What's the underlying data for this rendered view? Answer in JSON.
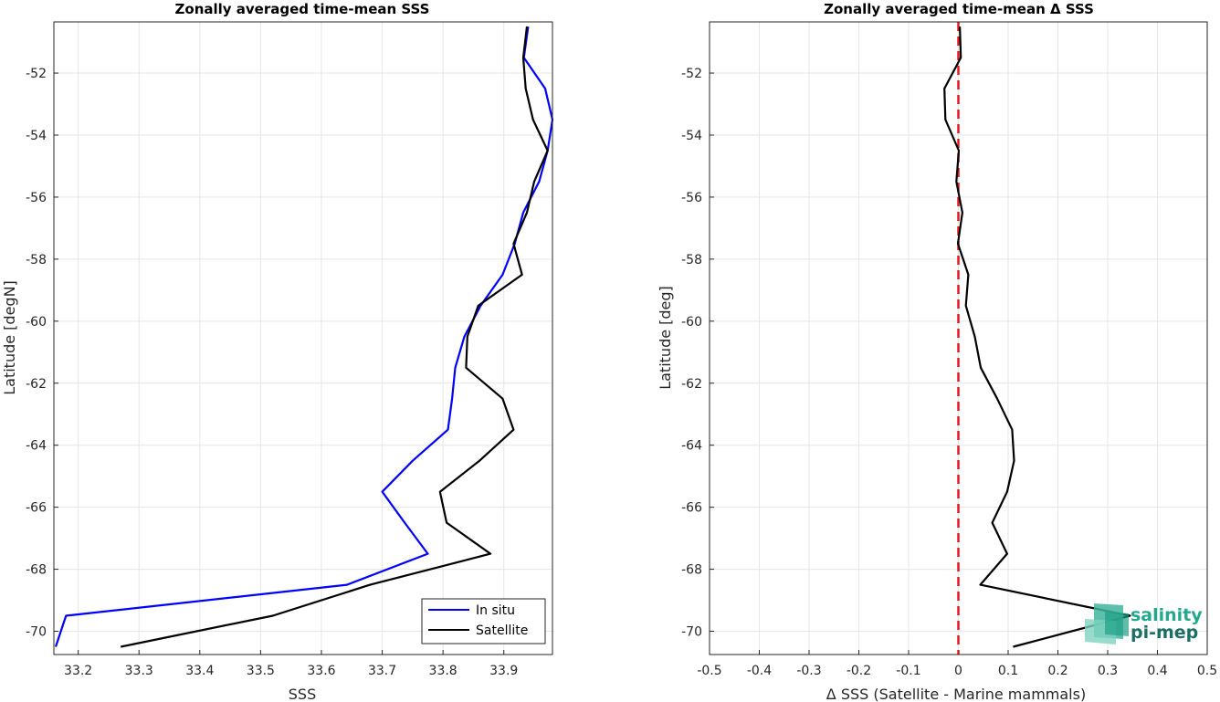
{
  "chart_data": [
    {
      "type": "line",
      "title": "Zonally averaged time-mean SSS",
      "xlabel": "SSS",
      "ylabel": "Latitude [degN]",
      "xlim": [
        33.16,
        33.98
      ],
      "ylim": [
        -70.75,
        -50.35
      ],
      "xticks": [
        "33.2",
        "33.3",
        "33.4",
        "33.5",
        "33.6",
        "33.7",
        "33.8",
        "33.9"
      ],
      "yticks": [
        "-52",
        "-54",
        "-56",
        "-58",
        "-60",
        "-62",
        "-64",
        "-66",
        "-68",
        "-70"
      ],
      "grid": true,
      "legend_position": "bottom-right",
      "series": [
        {
          "name": "In situ",
          "color": "#0000ff",
          "points": [
            [
              33.94,
              -50.5
            ],
            [
              33.933,
              -51.5
            ],
            [
              33.968,
              -52.5
            ],
            [
              33.98,
              -53.5
            ],
            [
              33.972,
              -54.5
            ],
            [
              33.958,
              -55.5
            ],
            [
              33.932,
              -56.5
            ],
            [
              33.918,
              -57.5
            ],
            [
              33.898,
              -58.5
            ],
            [
              33.862,
              -59.5
            ],
            [
              33.835,
              -60.5
            ],
            [
              33.82,
              -61.5
            ],
            [
              33.815,
              -62.5
            ],
            [
              33.808,
              -63.5
            ],
            [
              33.75,
              -64.5
            ],
            [
              33.7,
              -65.5
            ],
            [
              33.737,
              -66.5
            ],
            [
              33.775,
              -67.5
            ],
            [
              33.642,
              -68.5
            ],
            [
              33.18,
              -69.5
            ],
            [
              33.163,
              -70.5
            ]
          ]
        },
        {
          "name": "Satellite",
          "color": "#000000",
          "points": [
            [
              33.938,
              -50.5
            ],
            [
              33.932,
              -51.5
            ],
            [
              33.936,
              -52.5
            ],
            [
              33.948,
              -53.5
            ],
            [
              33.972,
              -54.5
            ],
            [
              33.95,
              -55.5
            ],
            [
              33.938,
              -56.5
            ],
            [
              33.916,
              -57.5
            ],
            [
              33.93,
              -58.5
            ],
            [
              33.858,
              -59.5
            ],
            [
              33.84,
              -60.5
            ],
            [
              33.838,
              -61.5
            ],
            [
              33.898,
              -62.5
            ],
            [
              33.916,
              -63.5
            ],
            [
              33.86,
              -64.5
            ],
            [
              33.795,
              -65.5
            ],
            [
              33.806,
              -66.5
            ],
            [
              33.878,
              -67.5
            ],
            [
              33.68,
              -68.5
            ],
            [
              33.52,
              -69.5
            ],
            [
              33.27,
              -70.5
            ]
          ]
        }
      ]
    },
    {
      "type": "line",
      "title": "Zonally averaged time-mean Δ SSS",
      "xlabel": "Δ SSS (Satellite - Marine mammals)",
      "ylabel": "Latitude [deg]",
      "xlim": [
        -0.5,
        0.5
      ],
      "ylim": [
        -70.75,
        -50.35
      ],
      "xticks": [
        "-0.5",
        "-0.4",
        "-0.3",
        "-0.2",
        "-0.1",
        "0",
        "0.1",
        "0.2",
        "0.3",
        "0.4",
        "0.5"
      ],
      "yticks": [
        "-52",
        "-54",
        "-56",
        "-58",
        "-60",
        "-62",
        "-64",
        "-66",
        "-68",
        "-70"
      ],
      "grid": true,
      "reference_line": {
        "x": 0,
        "color": "#e6191a",
        "style": "dashed"
      },
      "series": [
        {
          "color": "#000000",
          "points": [
            [
              0.003,
              -50.5
            ],
            [
              0.005,
              -51.5
            ],
            [
              -0.028,
              -52.5
            ],
            [
              -0.026,
              -53.5
            ],
            [
              0.001,
              -54.5
            ],
            [
              -0.004,
              -55.5
            ],
            [
              0.008,
              -56.5
            ],
            [
              -0.001,
              -57.5
            ],
            [
              0.02,
              -58.5
            ],
            [
              0.015,
              -59.5
            ],
            [
              0.033,
              -60.5
            ],
            [
              0.045,
              -61.5
            ],
            [
              0.078,
              -62.5
            ],
            [
              0.108,
              -63.5
            ],
            [
              0.112,
              -64.5
            ],
            [
              0.098,
              -65.5
            ],
            [
              0.068,
              -66.5
            ],
            [
              0.098,
              -67.5
            ],
            [
              0.044,
              -68.5
            ],
            [
              0.345,
              -69.5
            ],
            [
              0.11,
              -70.5
            ]
          ]
        }
      ]
    }
  ],
  "logo": {
    "line1": "salinity",
    "line2": "pi-mep"
  }
}
